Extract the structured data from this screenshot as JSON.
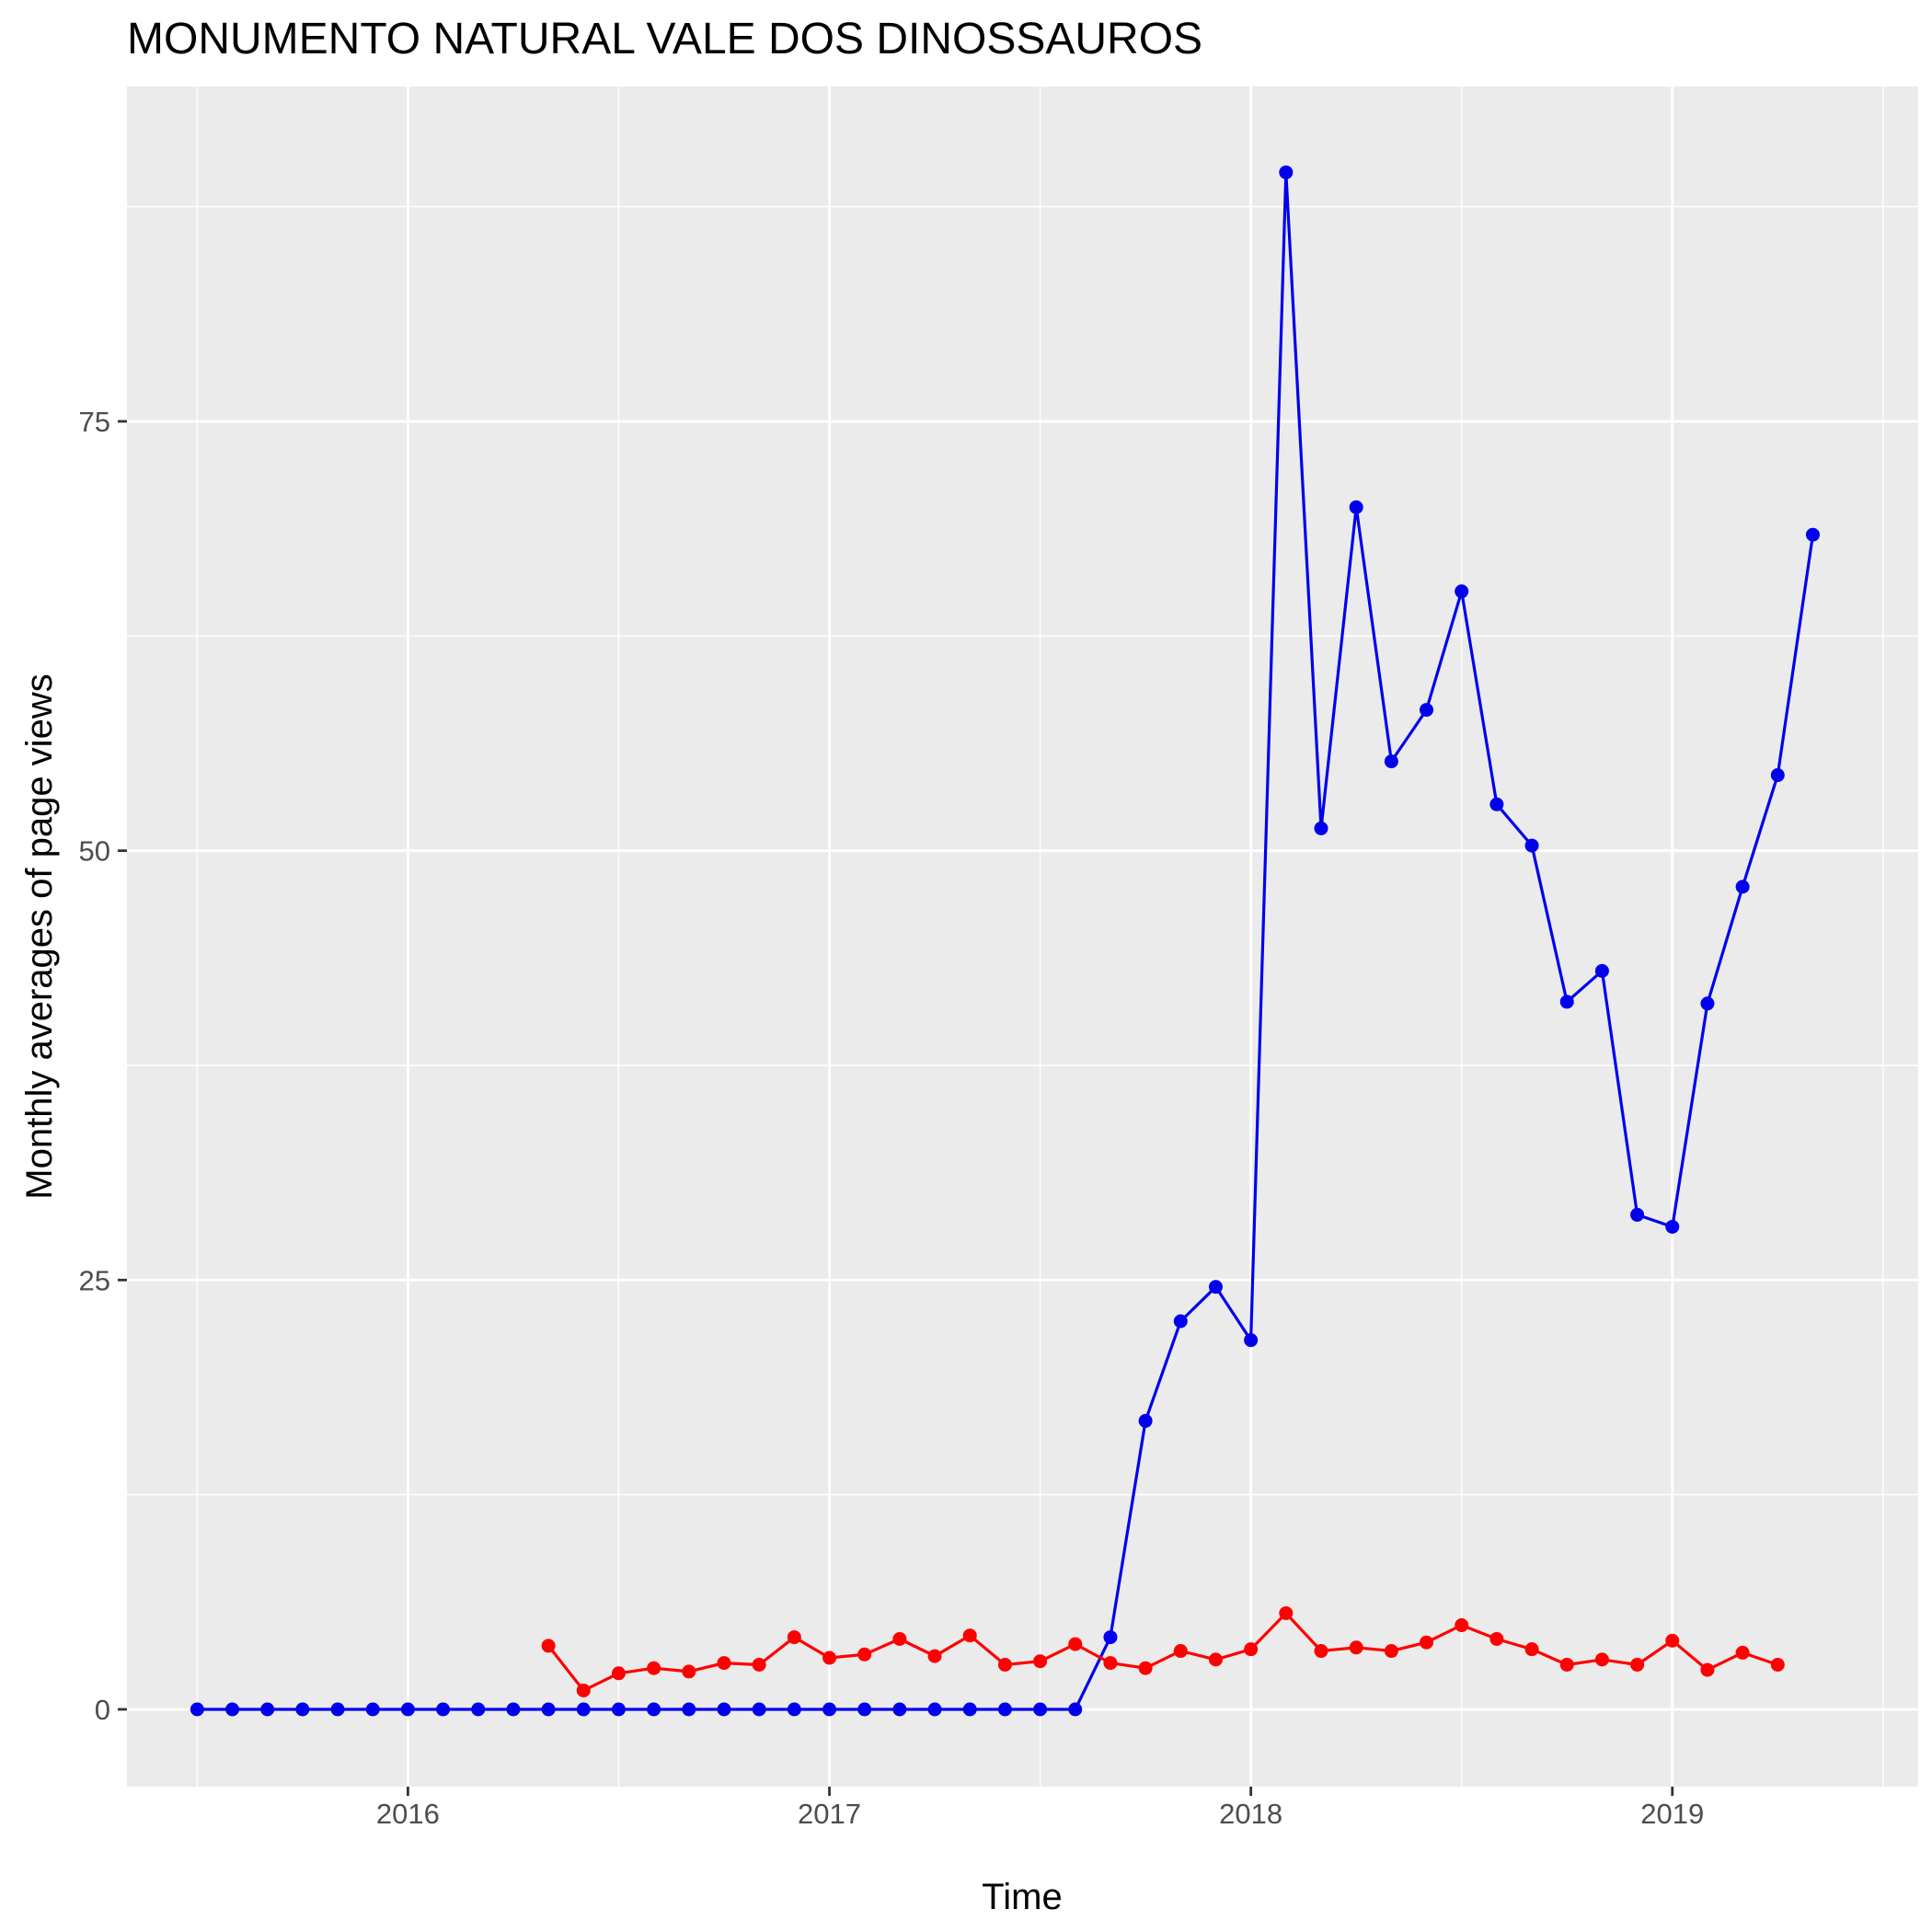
{
  "chart_data": {
    "type": "line",
    "title": "MONUMENTO NATURAL VALE DOS DINOSSAUROS",
    "xlabel": "Time",
    "ylabel": "Monthly averages of page views",
    "x_ticks": [
      "2016",
      "2017",
      "2018",
      "2019"
    ],
    "y_ticks": [
      "0",
      "25",
      "50",
      "75"
    ],
    "x_range": [
      "2015-05",
      "2019-08"
    ],
    "ylim": [
      -4.5,
      94.5
    ],
    "grid": true,
    "legend": "none",
    "colors": {
      "panel": "#EBEBEB",
      "grid": "#FFFFFF",
      "tick": "#333333"
    },
    "series": [
      {
        "color": "#0000EE",
        "x": [
          "2015-07",
          "2015-08",
          "2015-09",
          "2015-10",
          "2015-11",
          "2015-12",
          "2016-01",
          "2016-02",
          "2016-03",
          "2016-04",
          "2016-05",
          "2016-06",
          "2016-07",
          "2016-08",
          "2016-09",
          "2016-10",
          "2016-11",
          "2016-12",
          "2017-01",
          "2017-02",
          "2017-03",
          "2017-04",
          "2017-05",
          "2017-06",
          "2017-07",
          "2017-08",
          "2017-09",
          "2017-10",
          "2017-11",
          "2017-12",
          "2018-01",
          "2018-02",
          "2018-03",
          "2018-04",
          "2018-05",
          "2018-06",
          "2018-07",
          "2018-08",
          "2018-09",
          "2018-10",
          "2018-11",
          "2018-12",
          "2019-01",
          "2019-02",
          "2019-03",
          "2019-04",
          "2019-05"
        ],
        "values": [
          0,
          0,
          0,
          0,
          0,
          0,
          0,
          0,
          0,
          0,
          0,
          0,
          0,
          0,
          0,
          0,
          0,
          0,
          0,
          0,
          0,
          0,
          0,
          0,
          0,
          0,
          4.2,
          16.8,
          22.6,
          24.6,
          21.5,
          89.5,
          51.3,
          70,
          55.2,
          58.2,
          65.1,
          52.7,
          50.3,
          41.2,
          43,
          28.8,
          28.1,
          41.1,
          47.9,
          54.4,
          68.4
        ]
      },
      {
        "color": "#FF0000",
        "x": [
          "2016-05",
          "2016-06",
          "2016-07",
          "2016-08",
          "2016-09",
          "2016-10",
          "2016-11",
          "2016-12",
          "2017-01",
          "2017-02",
          "2017-03",
          "2017-04",
          "2017-05",
          "2017-06",
          "2017-07",
          "2017-08",
          "2017-09",
          "2017-10",
          "2017-11",
          "2017-12",
          "2018-01",
          "2018-02",
          "2018-03",
          "2018-04",
          "2018-05",
          "2018-06",
          "2018-07",
          "2018-08",
          "2018-09",
          "2018-10",
          "2018-11",
          "2018-12",
          "2019-01",
          "2019-02",
          "2019-03",
          "2019-04"
        ],
        "values": [
          3.7,
          1.1,
          2.1,
          2.4,
          2.2,
          2.7,
          2.6,
          4.2,
          3,
          3.2,
          4.1,
          3.1,
          4.3,
          2.6,
          2.8,
          3.8,
          2.7,
          2.4,
          3.4,
          2.9,
          3.5,
          5.6,
          3.4,
          3.6,
          3.4,
          3.9,
          4.9,
          4.1,
          3.5,
          2.6,
          2.9,
          2.6,
          4,
          2.3,
          3.3,
          2.6
        ]
      }
    ]
  }
}
